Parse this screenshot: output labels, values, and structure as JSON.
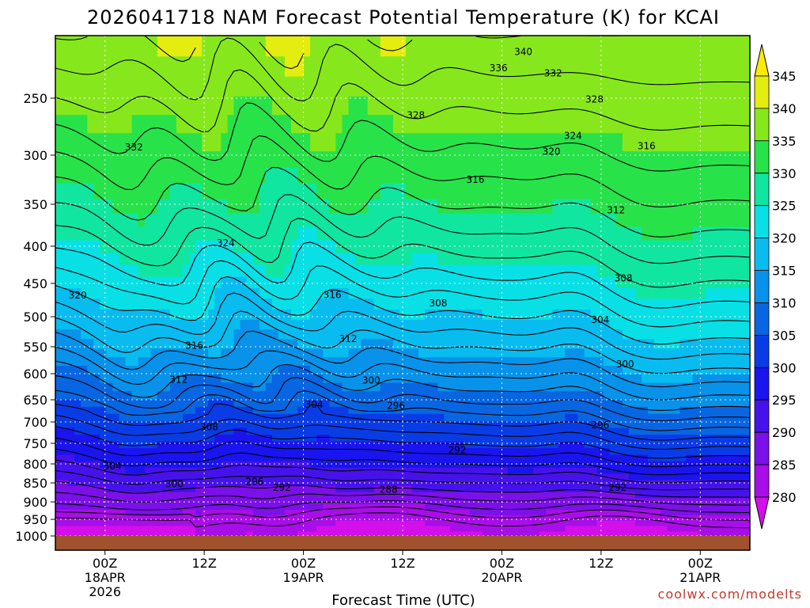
{
  "chart_data": {
    "type": "contour",
    "title": "2026041718 NAM Forecast Potential Temperature (K) for KCAI",
    "xlabel": "Forecast Time (UTC)",
    "ylabel": "",
    "credit": "coolwx.com/modelts",
    "x_ticks": [
      {
        "line1": "00Z",
        "line2": "18APR",
        "line3": "2026",
        "hour": 6
      },
      {
        "line1": "12Z",
        "line2": "",
        "line3": "",
        "hour": 18
      },
      {
        "line1": "00Z",
        "line2": "19APR",
        "line3": "",
        "hour": 30
      },
      {
        "line1": "12Z",
        "line2": "",
        "line3": "",
        "hour": 42
      },
      {
        "line1": "00Z",
        "line2": "20APR",
        "line3": "",
        "hour": 54
      },
      {
        "line1": "12Z",
        "line2": "",
        "line3": "",
        "hour": 66
      },
      {
        "line1": "00Z",
        "line2": "21APR",
        "line3": "",
        "hour": 78
      }
    ],
    "x_range_hours": [
      0,
      84
    ],
    "y_ticks": [
      "250",
      "300",
      "350",
      "400",
      "450",
      "500",
      "550",
      "600",
      "650",
      "700",
      "750",
      "800",
      "850",
      "900",
      "950",
      "1000"
    ],
    "y_range_hpa": [
      200,
      1010
    ],
    "colorbar": {
      "levels": [
        "280",
        "285",
        "290",
        "295",
        "300",
        "305",
        "310",
        "315",
        "320",
        "325",
        "330",
        "335",
        "340",
        "345"
      ],
      "colors": [
        "#d310ea",
        "#a80ee8",
        "#7b10e8",
        "#4612ec",
        "#1a14ee",
        "#0a3ce6",
        "#0866e2",
        "#0892ea",
        "#08bcf0",
        "#08e0e6",
        "#10e6a0",
        "#28e24a",
        "#86e81c",
        "#e4ec10",
        "#ffea00"
      ]
    },
    "contour_interval": 2,
    "contour_labels": [
      {
        "text": "340",
        "hour": 56.6,
        "p": 213
      },
      {
        "text": "336",
        "hour": 53.6,
        "p": 226
      },
      {
        "text": "332",
        "hour": 60.2,
        "p": 230
      },
      {
        "text": "328",
        "hour": 43.6,
        "p": 265
      },
      {
        "text": "328",
        "hour": 65.2,
        "p": 251
      },
      {
        "text": "324",
        "hour": 62.6,
        "p": 283
      },
      {
        "text": "320",
        "hour": 60.0,
        "p": 297
      },
      {
        "text": "316",
        "hour": 71.5,
        "p": 292
      },
      {
        "text": "316",
        "hour": 50.8,
        "p": 325
      },
      {
        "text": "312",
        "hour": 67.8,
        "p": 357
      },
      {
        "text": "332",
        "hour": 9.5,
        "p": 293
      },
      {
        "text": "324",
        "hour": 20.6,
        "p": 396
      },
      {
        "text": "320",
        "hour": 2.7,
        "p": 468
      },
      {
        "text": "316",
        "hour": 33.5,
        "p": 467
      },
      {
        "text": "316",
        "hour": 16.8,
        "p": 548
      },
      {
        "text": "312",
        "hour": 35.4,
        "p": 537
      },
      {
        "text": "312",
        "hour": 14.9,
        "p": 611
      },
      {
        "text": "308",
        "hour": 46.3,
        "p": 480
      },
      {
        "text": "308",
        "hour": 68.7,
        "p": 443
      },
      {
        "text": "304",
        "hour": 65.9,
        "p": 505
      },
      {
        "text": "300",
        "hour": 68.9,
        "p": 582
      },
      {
        "text": "300",
        "hour": 38.2,
        "p": 613
      },
      {
        "text": "296",
        "hour": 41.2,
        "p": 663
      },
      {
        "text": "296",
        "hour": 65.9,
        "p": 707
      },
      {
        "text": "304",
        "hour": 31.3,
        "p": 661
      },
      {
        "text": "308",
        "hour": 18.6,
        "p": 712
      },
      {
        "text": "304",
        "hour": 6.9,
        "p": 806
      },
      {
        "text": "300",
        "hour": 14.4,
        "p": 853
      },
      {
        "text": "296",
        "hour": 24.1,
        "p": 847
      },
      {
        "text": "292",
        "hour": 27.4,
        "p": 863
      },
      {
        "text": "292",
        "hour": 48.6,
        "p": 766
      },
      {
        "text": "292",
        "hour": 68.0,
        "p": 863
      },
      {
        "text": "288",
        "hour": 40.3,
        "p": 868
      }
    ]
  }
}
